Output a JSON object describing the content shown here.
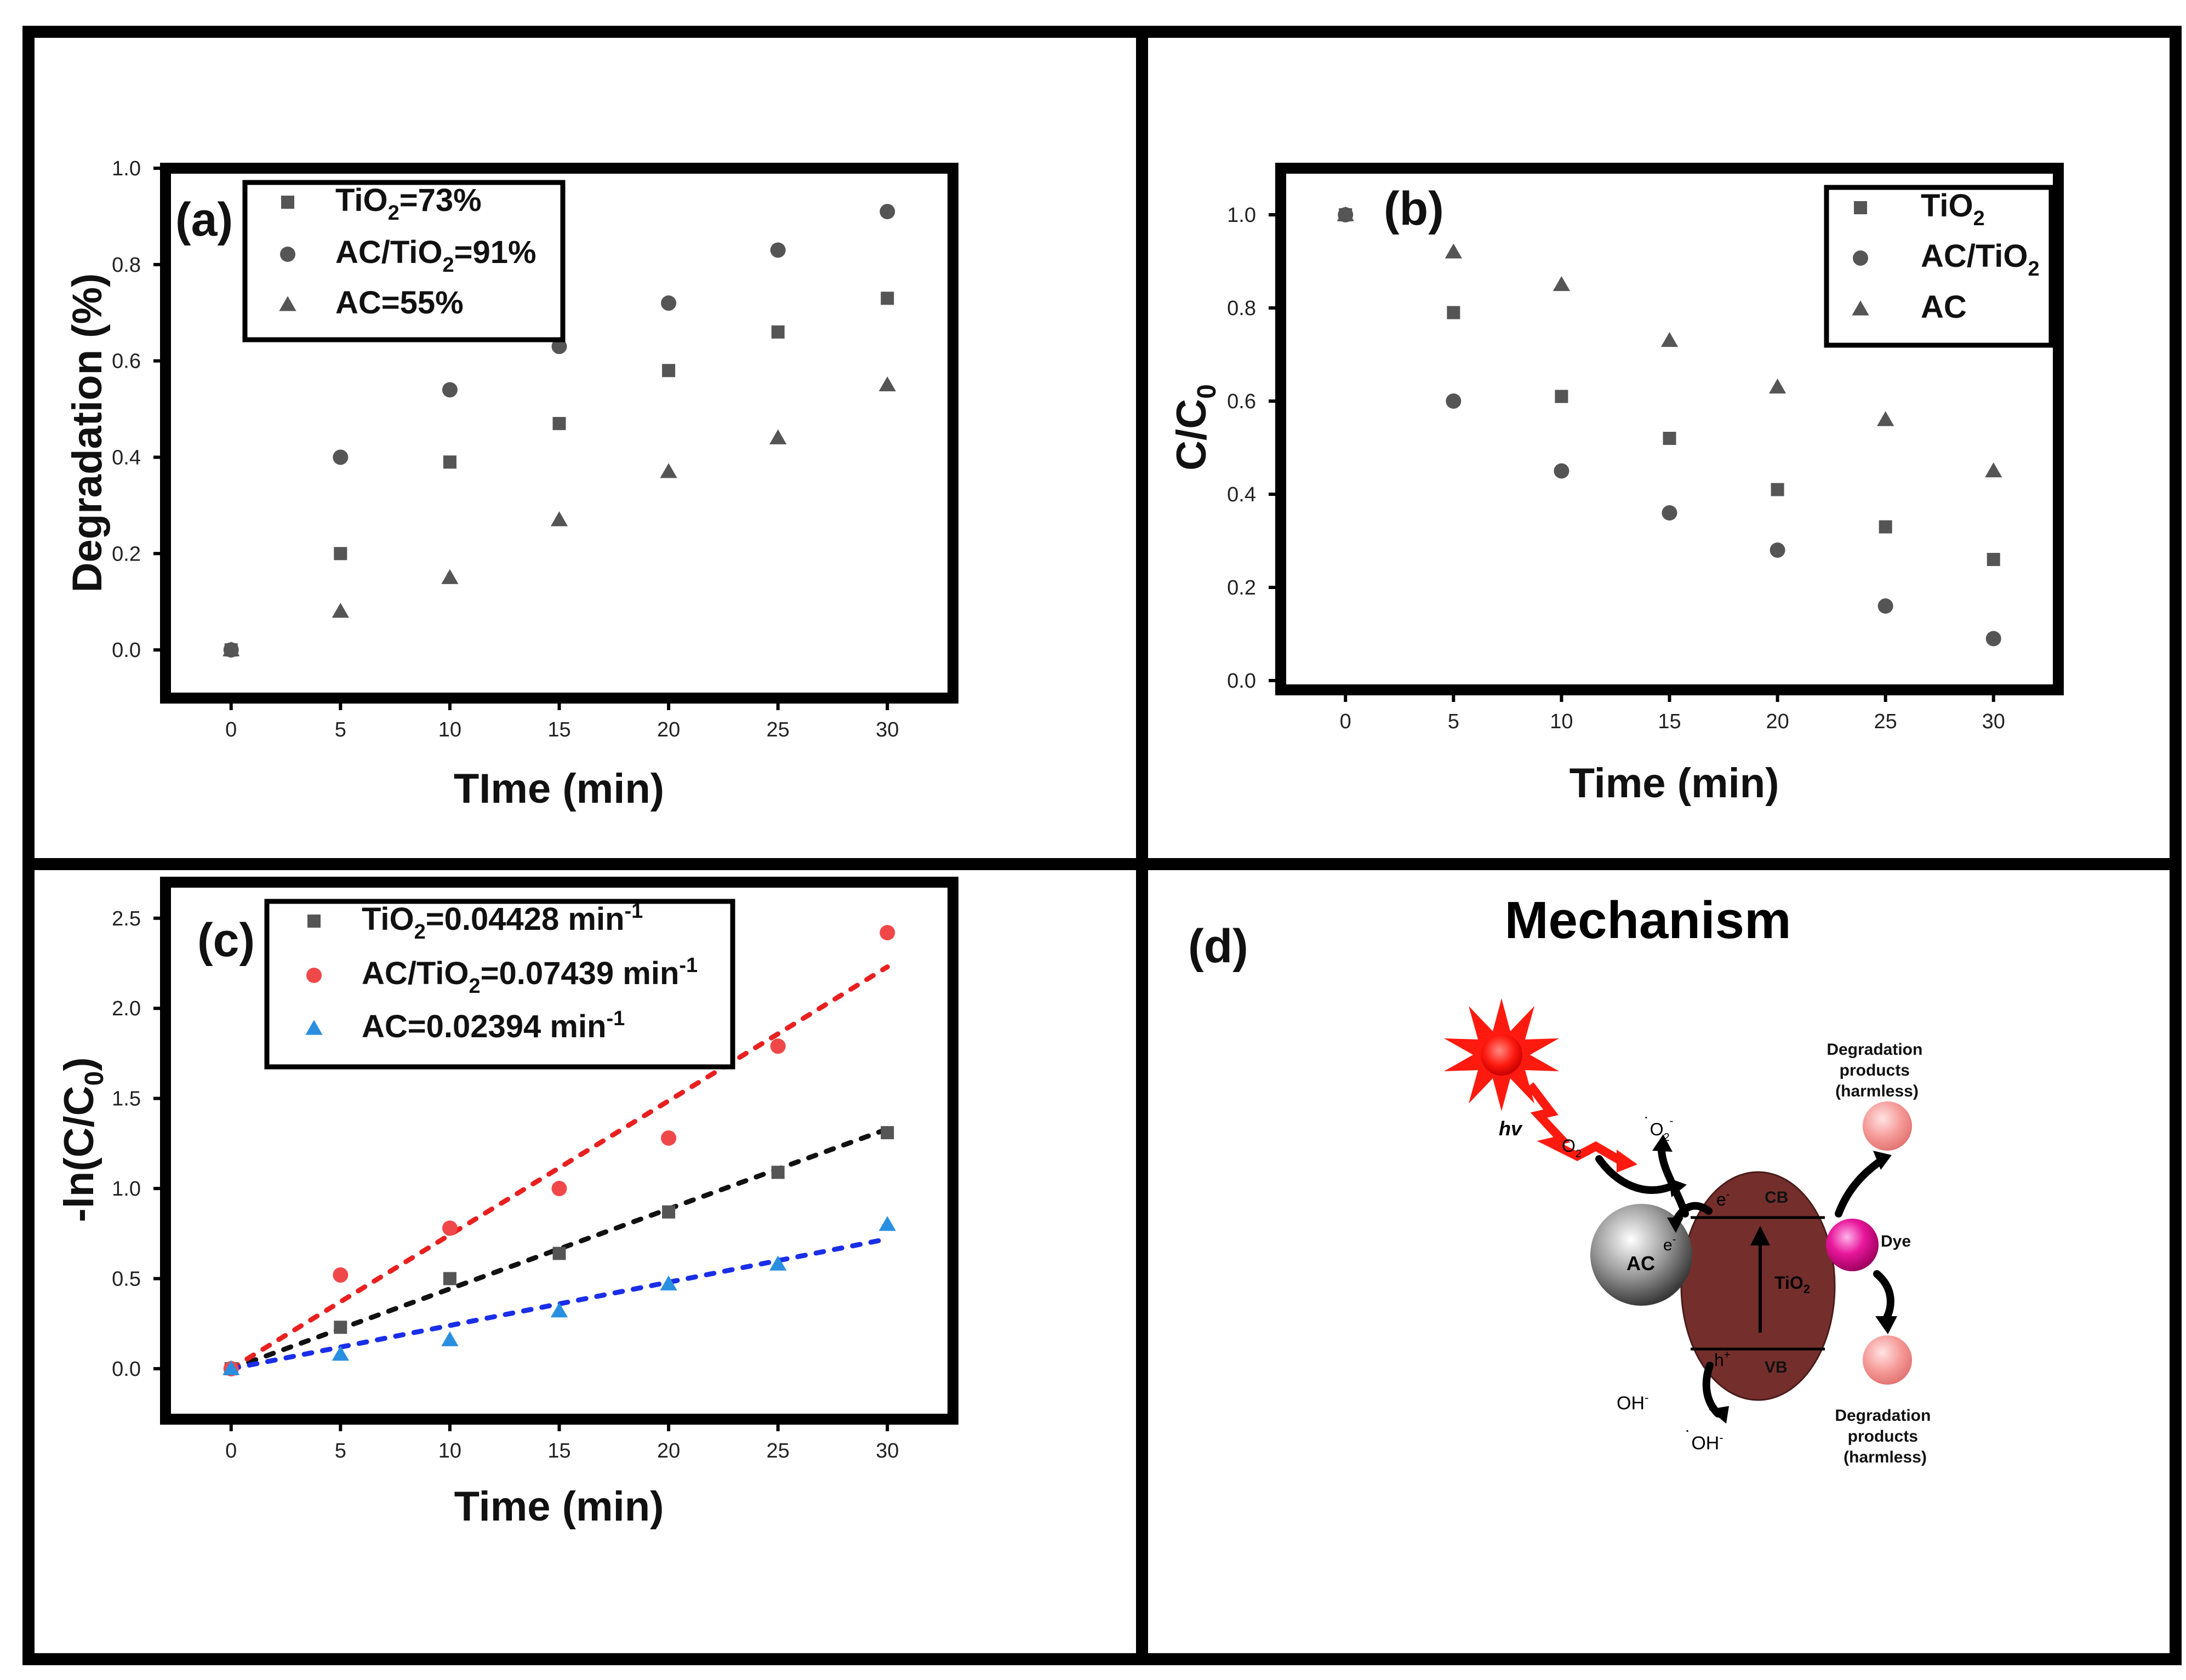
{
  "colors": {
    "gray_marker": "#555555",
    "red_marker": "#f04848",
    "blue_marker": "#2a8fe0",
    "red_fit": "#e82020",
    "black_fit": "#111111",
    "blue_fit": "#1a2ee8"
  },
  "chart_data": [
    {
      "id": "a",
      "type": "scatter",
      "panel_label": "(a)",
      "xlabel": "TIme (min)",
      "ylabel": "Degradation (%)",
      "xlim": [
        -3,
        33
      ],
      "ylim": [
        -0.1,
        1.0
      ],
      "xticks": [
        "0",
        "5",
        "10",
        "15",
        "20",
        "25",
        "30"
      ],
      "yticks": [
        "0.0",
        "0.2",
        "0.4",
        "0.6",
        "0.8",
        "1.0"
      ],
      "x": [
        0,
        5,
        10,
        15,
        20,
        25,
        30
      ],
      "series": [
        {
          "name": "TiO2",
          "legend_pre": "TiO",
          "legend_sub": "2",
          "legend_post": "=73%",
          "marker": "square",
          "values": [
            0,
            0.2,
            0.39,
            0.47,
            0.58,
            0.66,
            0.73
          ]
        },
        {
          "name": "AC/TiO2",
          "legend_pre": "AC/TiO",
          "legend_sub": "2",
          "legend_post": "=91%",
          "marker": "circle",
          "values": [
            0,
            0.4,
            0.54,
            0.63,
            0.72,
            0.83,
            0.91
          ]
        },
        {
          "name": "AC",
          "legend_pre": "AC=55%",
          "legend_sub": "",
          "legend_post": "",
          "marker": "triangle",
          "values": [
            0,
            0.08,
            0.15,
            0.27,
            0.37,
            0.44,
            0.55
          ]
        }
      ]
    },
    {
      "id": "b",
      "type": "scatter",
      "panel_label": "(b)",
      "xlabel": "Time (min)",
      "ylabel_main": "C/C",
      "ylabel_sub": "0",
      "xlim": [
        -3,
        33
      ],
      "ylim": [
        -0.02,
        1.1
      ],
      "xticks": [
        "0",
        "5",
        "10",
        "15",
        "20",
        "25",
        "30"
      ],
      "yticks": [
        "0.0",
        "0.2",
        "0.4",
        "0.6",
        "0.8",
        "1.0"
      ],
      "x": [
        0,
        5,
        10,
        15,
        20,
        25,
        30
      ],
      "series": [
        {
          "name": "TiO2",
          "legend_pre": "TiO",
          "legend_sub": "2",
          "legend_post": "",
          "marker": "square",
          "values": [
            1.0,
            0.79,
            0.61,
            0.52,
            0.41,
            0.33,
            0.26
          ]
        },
        {
          "name": "AC/TiO2",
          "legend_pre": "AC/TiO",
          "legend_sub": "2",
          "legend_post": "",
          "marker": "circle",
          "values": [
            1.0,
            0.6,
            0.45,
            0.36,
            0.28,
            0.16,
            0.09
          ]
        },
        {
          "name": "AC",
          "legend_pre": "AC",
          "legend_sub": "",
          "legend_post": "",
          "marker": "triangle",
          "values": [
            1.0,
            0.92,
            0.85,
            0.73,
            0.63,
            0.56,
            0.45
          ]
        }
      ]
    },
    {
      "id": "c",
      "type": "scatter",
      "panel_label": "(c)",
      "xlabel": "Time (min)",
      "ylabel_main": "-ln(C/C",
      "ylabel_sub": "0",
      "ylabel_end": ")",
      "xlim": [
        -3,
        33
      ],
      "ylim": [
        -0.28,
        2.7
      ],
      "xticks": [
        "0",
        "5",
        "10",
        "15",
        "20",
        "25",
        "30"
      ],
      "yticks": [
        "0.0",
        "0.5",
        "1.0",
        "1.5",
        "2.0",
        "2.5"
      ],
      "x": [
        0,
        5,
        10,
        15,
        20,
        25,
        30
      ],
      "series": [
        {
          "name": "TiO2",
          "legend_pre": "TiO",
          "legend_sub": "2",
          "legend_post": "=0.04428 min",
          "legend_sup": "-1",
          "marker": "square",
          "color_key": "gray_marker",
          "fit_color_key": "black_fit",
          "values": [
            0,
            0.23,
            0.5,
            0.64,
            0.87,
            1.09,
            1.31
          ],
          "fit": [
            [
              0,
              0
            ],
            [
              30,
              1.33
            ]
          ]
        },
        {
          "name": "AC/TiO2",
          "legend_pre": "AC/TiO",
          "legend_sub": "2",
          "legend_post": "=0.07439 min",
          "legend_sup": "-1",
          "marker": "circle",
          "color_key": "red_marker",
          "fit_color_key": "red_fit",
          "values": [
            0,
            0.52,
            0.78,
            1.0,
            1.28,
            1.79,
            2.42
          ],
          "fit": [
            [
              0,
              0
            ],
            [
              30,
              2.23
            ]
          ]
        },
        {
          "name": "AC",
          "legend_pre": "AC=0.02394 min",
          "legend_sub": "",
          "legend_post": "",
          "legend_sup": "-1",
          "marker": "triangle",
          "color_key": "blue_marker",
          "fit_color_key": "blue_fit",
          "values": [
            0,
            0.08,
            0.16,
            0.32,
            0.47,
            0.58,
            0.8
          ],
          "fit": [
            [
              0,
              0
            ],
            [
              30,
              0.72
            ]
          ]
        }
      ]
    }
  ],
  "mechanism": {
    "panel_label": "(d)",
    "title": "Mechanism",
    "hv": "hv",
    "o2": "O",
    "o2_sub": "2",
    "superoxide": "O",
    "superoxide_sub": "2",
    "superoxide_sup": "-",
    "superoxide_dot": "˙",
    "ac_label": "AC",
    "ac_sup": "e",
    "ac_sup2": "-",
    "cb": "CB",
    "vb": "VB",
    "electron": "e",
    "electron_sup": "-",
    "hole": "h",
    "hole_sup": "+",
    "tio2": "TiO",
    "tio2_sub": "2",
    "dye": "Dye",
    "oh_minus": "OH",
    "oh_minus_sup": "-",
    "oh_radical": "OH",
    "oh_radical_sup": "-",
    "oh_radical_dot": "˙",
    "products_top": [
      "Degradation",
      "products",
      "(harmless)"
    ],
    "products_bottom": [
      "Degradation",
      "products",
      "(harmless)"
    ]
  }
}
